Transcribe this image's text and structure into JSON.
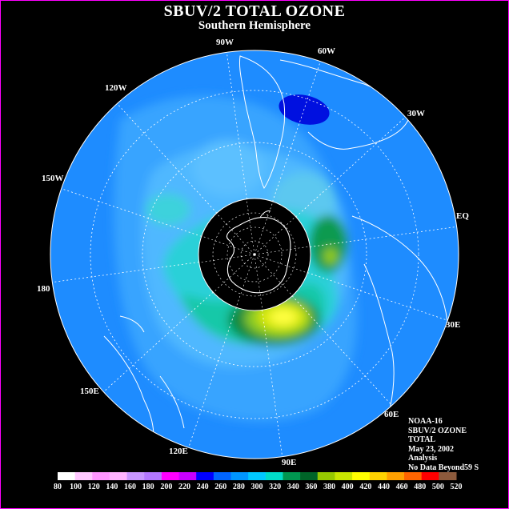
{
  "title": "SBUV/2 TOTAL OZONE",
  "subtitle": "Southern Hemisphere",
  "meridian_labels": [
    "90W",
    "60W",
    "30W",
    "EQ",
    "30E",
    "60E",
    "90E",
    "120E",
    "150E",
    "180",
    "150W",
    "120W"
  ],
  "info": {
    "satellite": "NOAA-16",
    "instrument": "SBUV/2 OZONE",
    "product": "TOTAL",
    "date": "May 23, 2002",
    "type": "Analysis",
    "note": "No Data Beyond59 S"
  },
  "legend": {
    "ticks": [
      "80",
      "100",
      "120",
      "140",
      "160",
      "180",
      "200",
      "220",
      "240",
      "260",
      "280",
      "300",
      "320",
      "340",
      "360",
      "380",
      "400",
      "420",
      "440",
      "460",
      "480",
      "500",
      "520"
    ],
    "colors": [
      "#ffffff",
      "#ffc8ff",
      "#ff96ff",
      "#ffb4ff",
      "#c896ff",
      "#b478ff",
      "#ff00ff",
      "#c800ff",
      "#0000ff",
      "#0064ff",
      "#0096ff",
      "#00c8ff",
      "#00dcc8",
      "#009650",
      "#006428",
      "#96c800",
      "#c8e600",
      "#ffff00",
      "#ffd200",
      "#ffa000",
      "#ff6400",
      "#ff0000",
      "#8c5a3c"
    ]
  },
  "colors": {
    "background": "#000000",
    "ocean_base": "#1e8cff",
    "border": "#ff00ff"
  }
}
